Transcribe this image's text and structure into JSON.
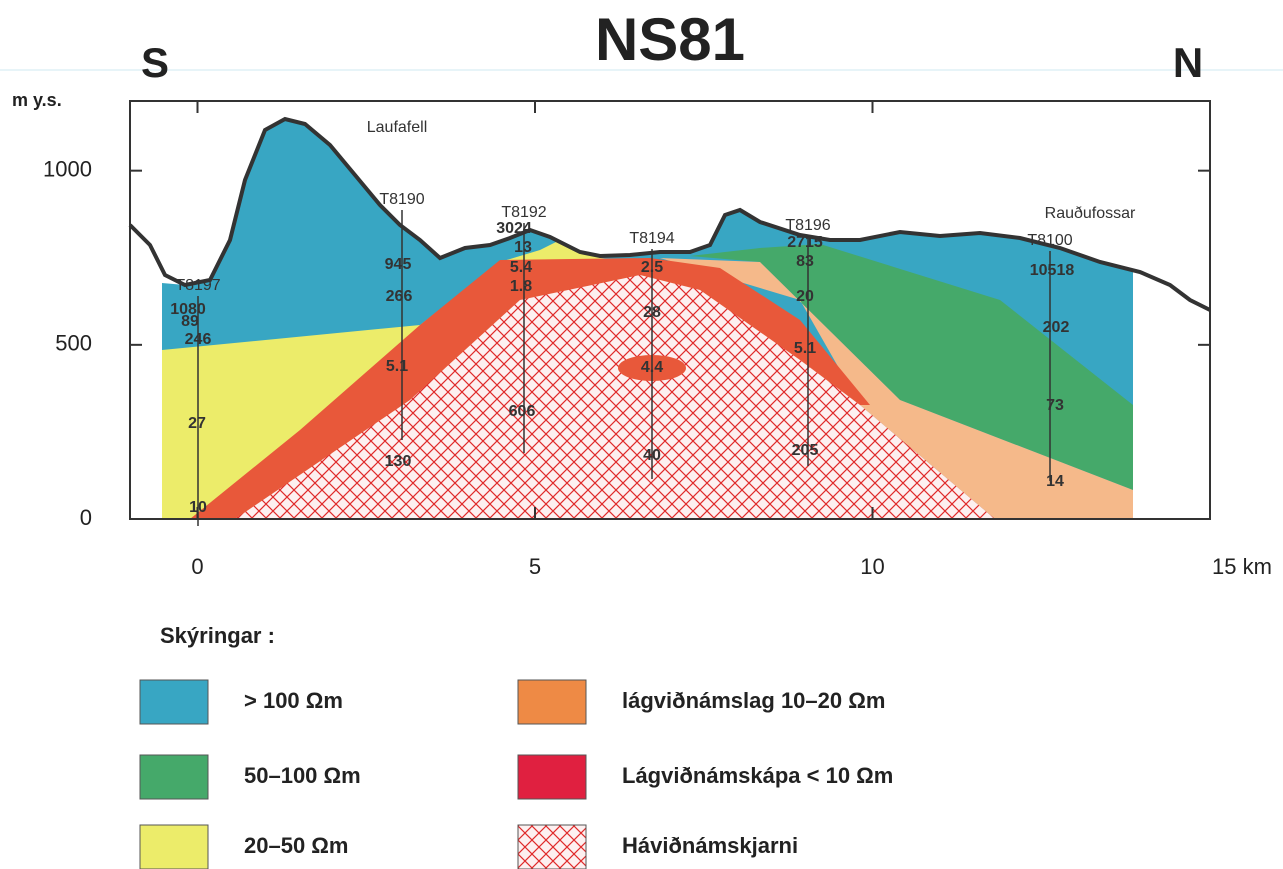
{
  "chart_data": {
    "type": "cross-section",
    "title": "NS81",
    "left_label": "S",
    "right_label": "N",
    "y_axis_label": "m y.s.",
    "xlim": [
      -1,
      15
    ],
    "xticks": [
      0,
      5,
      10,
      {
        "value": 15,
        "label": "15 km"
      }
    ],
    "ylim": [
      0,
      1200
    ],
    "yticks": [
      0,
      500,
      1000
    ],
    "places": [
      "Laufafell",
      "Rauðufossar"
    ],
    "stations": [
      "T8197",
      "T8190",
      "T8192",
      "T8194",
      "T8196",
      "T8100"
    ],
    "resistivity_labels": [
      "1080",
      "89",
      "246",
      "27",
      "10",
      "945",
      "266",
      "5.1",
      "130",
      "3024",
      "13",
      "5.4",
      "1.8",
      "606",
      "2.5",
      "28",
      "4.4",
      "40",
      "2715",
      "83",
      "20",
      "5.1",
      "205",
      "10518",
      "202",
      "73",
      "14"
    ],
    "legend": {
      "title": "Skýringar :",
      "items": [
        {
          "label": "> 100 Ωm",
          "color": "#38a6c3"
        },
        {
          "label": "50–100 Ωm",
          "color": "#45a96a"
        },
        {
          "label": "20–50 Ωm",
          "color": "#ecec6a"
        },
        {
          "label": "lágviðnámslag 10–20 Ωm",
          "color": "#ee8a45"
        },
        {
          "label": "Lágviðnámskápa < 10 Ωm",
          "color": "#e02040"
        },
        {
          "label": "Háviðnámskjarni",
          "color": "#e02a2a",
          "pattern": "crosshatch"
        }
      ]
    }
  }
}
